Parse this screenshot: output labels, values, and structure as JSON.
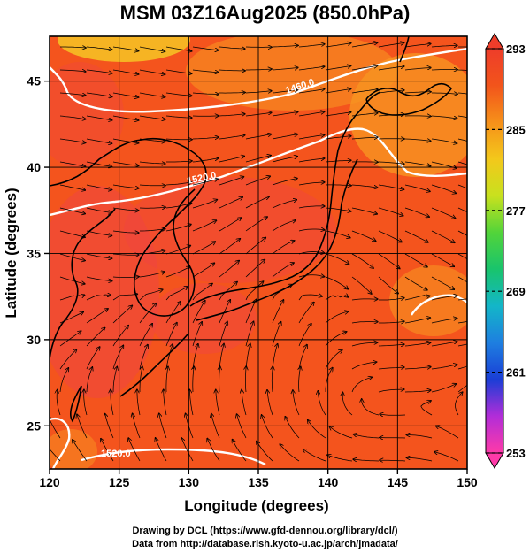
{
  "title": "MSM 03Z16Aug2025 (850.0hPa)",
  "axes": {
    "xlabel": "Longitude (degrees)",
    "ylabel": "Latitude  (degrees)",
    "xlim": [
      120,
      150
    ],
    "ylim": [
      22.5,
      47.6
    ],
    "xticks": [
      "120",
      "125",
      "130",
      "135",
      "140",
      "145",
      "150"
    ],
    "yticks": [
      "25",
      "30",
      "35",
      "40",
      "45"
    ],
    "grid": true
  },
  "contours": [
    {
      "label": "1460.0"
    },
    {
      "label": "1520.0"
    },
    {
      "label": "1520.0"
    }
  ],
  "colorbar": {
    "ticks": [
      "293",
      "285",
      "277",
      "269",
      "261",
      "253"
    ],
    "min": 253,
    "max": 293,
    "palette": [
      "#ff3aa8",
      "#b22dd8",
      "#1a3ed6",
      "#1e7fe0",
      "#13b6c8",
      "#19c46c",
      "#52d43a",
      "#c8e11e",
      "#f3c81b",
      "#f6901a",
      "#f2541b",
      "#ee3d2a"
    ]
  },
  "field": {
    "base_color": "#f4541d",
    "warm_color": "#ef4542",
    "cool_color": "#f79422",
    "cold_color": "#f6c625"
  },
  "credits": {
    "line1": "Drawing by DCL (https://www.gfd-dennou.org/library/dcl/)",
    "line2": "Data from http://database.rish.kyoto-u.ac.jp/arch/jmadata/"
  }
}
